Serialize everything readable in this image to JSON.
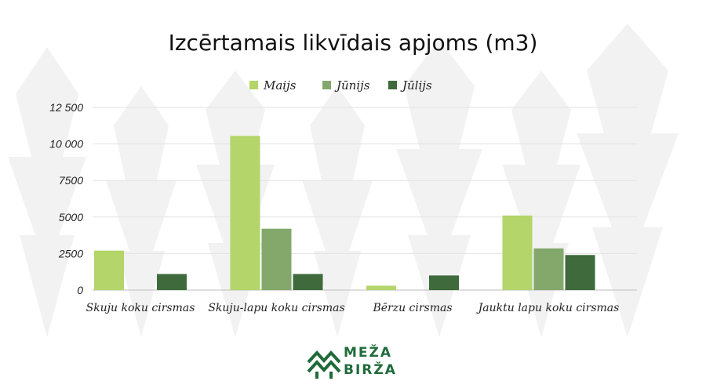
{
  "chart_data": {
    "type": "bar",
    "title": "Izcērtamais likvīdais apjoms (m3)",
    "categories": [
      "Skuju koku cirsmas",
      "Skuju-lapu koku cirsmas",
      "Bērzu cirsmas",
      "Jauktu lapu koku cirsmas"
    ],
    "series": [
      {
        "name": "Maijs",
        "color": "#b3d56a",
        "values": [
          2700,
          10550,
          300,
          5100
        ]
      },
      {
        "name": "Jūnijs",
        "color": "#84a86c",
        "values": [
          0,
          4200,
          0,
          2850
        ]
      },
      {
        "name": "Jūlijs",
        "color": "#3e6a3c",
        "values": [
          1100,
          1100,
          1000,
          2400
        ]
      }
    ],
    "y_ticks": [
      {
        "value": 0,
        "label": "0"
      },
      {
        "value": 2500,
        "label": "2500"
      },
      {
        "value": 5000,
        "label": "5000"
      },
      {
        "value": 7500,
        "label": "7500"
      },
      {
        "value": 10000,
        "label": "10 000"
      },
      {
        "value": 12500,
        "label": "12 500"
      }
    ],
    "ylim": [
      0,
      12500
    ],
    "grid": true,
    "legend_position": "top"
  },
  "logo": {
    "line1": "MEŽA",
    "line2": "BIRŽA",
    "color": "#1f6b3a"
  }
}
